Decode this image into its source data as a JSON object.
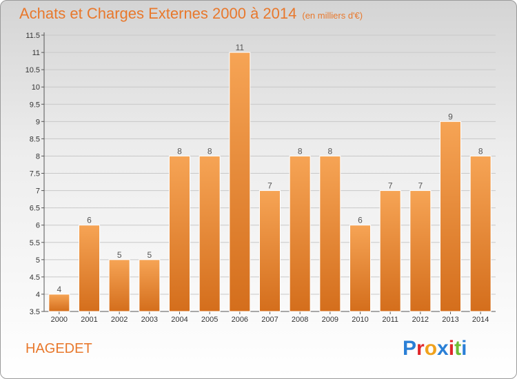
{
  "title": "Achats et Charges Externes 2000 à 2014",
  "subtitle": "(en milliers d'€)",
  "commune": "HAGEDET",
  "logo": {
    "letters": [
      "P",
      "r",
      "o",
      "x",
      "i",
      "t",
      "i"
    ],
    "colors": [
      "#2a7fd6",
      "#e0262a",
      "#f0a21d",
      "#2a7fd6",
      "#e0262a",
      "#6cbc35",
      "#2a7fd6"
    ]
  },
  "colors": {
    "bar_top": "#f6a455",
    "bar_bottom": "#d46e1c",
    "bar_stroke": "#ffffff",
    "title": "#e8782c",
    "grid": "#c8c8c8"
  },
  "chart_data": {
    "type": "bar",
    "categories": [
      "2000",
      "2001",
      "2002",
      "2003",
      "2004",
      "2005",
      "2006",
      "2007",
      "2008",
      "2009",
      "2010",
      "2011",
      "2012",
      "2013",
      "2014"
    ],
    "values": [
      4,
      6,
      5,
      5,
      8,
      8,
      11,
      7,
      8,
      8,
      6,
      7,
      7,
      9,
      8
    ],
    "value_labels": [
      "4",
      "6",
      "5",
      "5",
      "8",
      "8",
      "11",
      "7",
      "8",
      "8",
      "6",
      "7",
      "7",
      "9",
      "8"
    ],
    "ylim": [
      3.5,
      11.5
    ],
    "yticks": [
      "3.5",
      "4",
      "4.5",
      "5",
      "5.5",
      "6",
      "6.5",
      "7",
      "7.5",
      "8",
      "8.5",
      "9",
      "9.5",
      "10",
      "10.5",
      "11",
      "11.5"
    ],
    "grid": true
  }
}
